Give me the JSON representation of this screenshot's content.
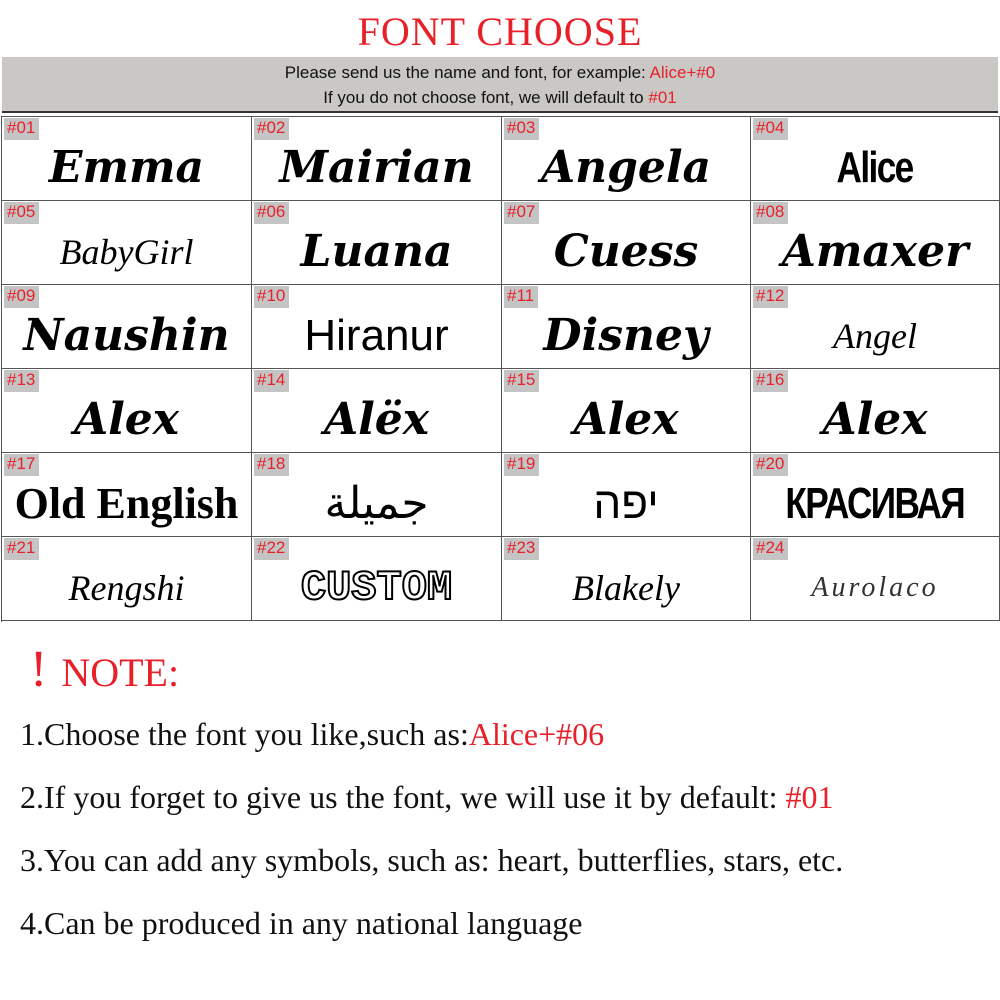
{
  "title": "FONT CHOOSE",
  "banner": {
    "line1": "Please send us the name and font, for example: ",
    "line1_example": "Alice+#0",
    "line2": "If you do not choose  font, we will default to ",
    "line2_default": "#01"
  },
  "fonts": [
    {
      "num": "#01",
      "sample": "Emma",
      "style": "script"
    },
    {
      "num": "#02",
      "sample": "Mairian",
      "style": "script"
    },
    {
      "num": "#03",
      "sample": "Angela",
      "style": "script"
    },
    {
      "num": "#04",
      "sample": "Alice",
      "style": "condensed"
    },
    {
      "num": "#05",
      "sample": "BabyGirl",
      "style": "thin"
    },
    {
      "num": "#06",
      "sample": "Luana",
      "style": "script"
    },
    {
      "num": "#07",
      "sample": "Cuess",
      "style": "script"
    },
    {
      "num": "#08",
      "sample": "Amaxer",
      "style": "script"
    },
    {
      "num": "#09",
      "sample": "Naushin",
      "style": "script"
    },
    {
      "num": "#10",
      "sample": "Hiranur",
      "style": "sans"
    },
    {
      "num": "#11",
      "sample": "Disney",
      "style": "script"
    },
    {
      "num": "#12",
      "sample": "Angel",
      "style": "thin"
    },
    {
      "num": "#13",
      "sample": "Alex",
      "style": "script"
    },
    {
      "num": "#14",
      "sample": "Alëx",
      "style": "script"
    },
    {
      "num": "#15",
      "sample": "Alex",
      "style": "script"
    },
    {
      "num": "#16",
      "sample": "Alex",
      "style": "script"
    },
    {
      "num": "#17",
      "sample": "Old English",
      "style": "black"
    },
    {
      "num": "#18",
      "sample": "جميلة",
      "style": "sans"
    },
    {
      "num": "#19",
      "sample": "יפה",
      "style": "sans"
    },
    {
      "num": "#20",
      "sample": "КРАСИВАЯ",
      "style": "condensed"
    },
    {
      "num": "#21",
      "sample": "Rengshi",
      "style": "thin"
    },
    {
      "num": "#22",
      "sample": "CUSTOM",
      "style": "outline"
    },
    {
      "num": "#23",
      "sample": "Blakely",
      "style": "thin"
    },
    {
      "num": "#24",
      "sample": "Aurolaco",
      "style": "hair"
    }
  ],
  "note": {
    "mark": "!",
    "heading": "NOTE:",
    "items": [
      {
        "text": "1.Choose the font you like,such as:",
        "highlight": "Alice+#06"
      },
      {
        "text": "2.If you forget to give us the font, we will use it by default: ",
        "highlight": "#01"
      },
      {
        "text": "3.You can add any symbols, such as: heart, butterflies, stars, etc.",
        "highlight": ""
      },
      {
        "text": "4.Can be produced in any national language",
        "highlight": ""
      }
    ]
  },
  "colors": {
    "accent": "#e8202a",
    "banner_bg": "#c9c8c4",
    "label_bg": "#c4c4c4"
  }
}
